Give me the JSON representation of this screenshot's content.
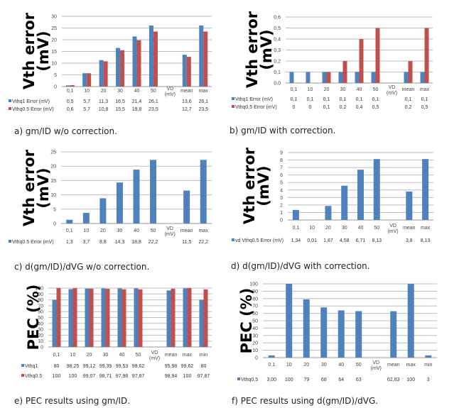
{
  "colors": {
    "blue": "#4f81bd",
    "red": "#c0504d",
    "grid": "#bdbdbd"
  },
  "chart_data": [
    {
      "id": "a",
      "type": "bar",
      "caption": "a) gm/ID w/o correction.",
      "ylabel": [
        "Vth error",
        "(mV)"
      ],
      "ylim": [
        0,
        30
      ],
      "ystep": 5,
      "tick_decimals": 0,
      "grid": true,
      "categories": [
        "0,1",
        "10",
        "20",
        "30",
        "40",
        "50",
        "VD\n(mV)",
        "mean",
        "max"
      ],
      "series": [
        {
          "name": "Vthq1 Error (mV)",
          "color": "#4f81bd",
          "values": [
            0.5,
            5.7,
            11.3,
            16.5,
            21.4,
            26.1,
            null,
            13.6,
            26.1
          ],
          "labels": [
            "0,5",
            "5,7",
            "11,3",
            "16,5",
            "21,4",
            "26,1",
            "",
            "13,6",
            "26,1"
          ]
        },
        {
          "name": "Vthq0.5 Error (mV)",
          "color": "#c0504d",
          "values": [
            0.6,
            5.7,
            10.8,
            15.5,
            19.8,
            23.5,
            null,
            12.7,
            23.5
          ],
          "labels": [
            "0,6",
            "5,7",
            "10,8",
            "15,5",
            "19,8",
            "23,5",
            "",
            "12,7",
            "23,5"
          ]
        }
      ]
    },
    {
      "id": "b",
      "type": "bar",
      "caption": "b) gm/ID with correction.",
      "ylabel": [
        "Vth error",
        "(mV)"
      ],
      "ylim": [
        0,
        0.6
      ],
      "ystep": 0.1,
      "tick_decimals": 1,
      "grid": true,
      "categories": [
        "0,1",
        "10",
        "20",
        "30",
        "40",
        "50",
        "VD\n(mV)",
        "mean",
        "max"
      ],
      "series": [
        {
          "name": "Vthq1 Error (mV)",
          "color": "#4f81bd",
          "values": [
            0.1,
            0.1,
            0.1,
            0.1,
            0.1,
            0.1,
            null,
            0.1,
            0.1
          ],
          "labels": [
            "0,1",
            "0,1",
            "0,1",
            "0,1",
            "0,1",
            "0,1",
            "",
            "0,1",
            "0,1"
          ]
        },
        {
          "name": "Vthq0.5 Error (mV)",
          "color": "#c0504d",
          "values": [
            0,
            0,
            0.1,
            0.2,
            0.4,
            0.5,
            null,
            0.2,
            0.5
          ],
          "labels": [
            "0",
            "0",
            "0,1",
            "0,2",
            "0,4",
            "0,5",
            "",
            "0,2",
            "0,5"
          ]
        }
      ]
    },
    {
      "id": "c",
      "type": "bar",
      "caption": "c) d(gm/ID)/dVG w/o correction.",
      "ylabel": [
        "Vth error",
        "(mV)"
      ],
      "ylim": [
        0,
        25
      ],
      "ystep": 5,
      "tick_decimals": 0,
      "grid": true,
      "categories": [
        "0,1",
        "10",
        "20",
        "30",
        "40",
        "50",
        "VD\n(mV)",
        "mean",
        "max"
      ],
      "series": [
        {
          "name": "Vthq0.5 Error (mV)",
          "color": "#4f81bd",
          "values": [
            1.3,
            3.7,
            8.8,
            14.3,
            18.8,
            22.2,
            null,
            11.5,
            22.2
          ],
          "labels": [
            "1,3",
            "3,7",
            "8,8",
            "14,3",
            "18,8",
            "22,2",
            "",
            "11,5",
            "22,2"
          ]
        }
      ]
    },
    {
      "id": "d",
      "type": "bar",
      "caption": "d) d(gm/ID)/dVG with correction.",
      "ylabel": [
        "Vth error",
        "(mV)"
      ],
      "ylim": [
        0,
        9
      ],
      "ystep": 1,
      "tick_decimals": 0,
      "grid": true,
      "categories": [
        "0,1",
        "10",
        "20",
        "30",
        "40",
        "50",
        "VD\n(mV)",
        "mean",
        "max"
      ],
      "series": [
        {
          "name": "vd Vthq0.5 Error (mV)",
          "color": "#4f81bd",
          "values": [
            1.34,
            0.01,
            1.87,
            4.58,
            6.71,
            8.13,
            null,
            3.8,
            8.13
          ],
          "labels": [
            "1,34",
            "0,01",
            "1,87",
            "4,58",
            "6,71",
            "8,13",
            "",
            "3,8",
            "8,13"
          ]
        }
      ]
    },
    {
      "id": "e",
      "type": "bar",
      "caption": "e) PEC results using gm/ID.",
      "ylabel": [
        "PEC (%)"
      ],
      "ylim": [
        0,
        100
      ],
      "ystep": 10,
      "tick_decimals": 0,
      "grid": true,
      "categories": [
        "0,1",
        "10",
        "20",
        "30",
        "40",
        "50",
        "VD\n(mV)",
        "mean",
        "max",
        "min"
      ],
      "series": [
        {
          "name": "Vthq1",
          "color": "#4f81bd",
          "values": [
            80,
            98.25,
            99.12,
            99.39,
            99.53,
            99.62,
            null,
            95.98,
            99.62,
            80
          ],
          "labels": [
            "80",
            "98,25",
            "99,12",
            "99,39",
            "99,53",
            "99,62",
            "",
            "95,98",
            "99,62",
            "80"
          ]
        },
        {
          "name": "Vthq0.5",
          "color": "#c0504d",
          "values": [
            100,
            100,
            99.07,
            98.71,
            97.98,
            97.87,
            null,
            98.94,
            100,
            97.87
          ],
          "labels": [
            "100",
            "100",
            "99,07",
            "98,71",
            "97,98",
            "97,87",
            "",
            "98,94",
            "100",
            "97,87"
          ]
        }
      ]
    },
    {
      "id": "f",
      "type": "bar",
      "caption": "f) PEC results using d(gm/ID)/dVG.",
      "ylabel": [
        "PEC (%)"
      ],
      "ylim": [
        0,
        100
      ],
      "ystep": 10,
      "tick_decimals": 0,
      "grid": true,
      "categories": [
        "0,1",
        "10",
        "20",
        "30",
        "40",
        "50",
        "VD\n(mV)",
        "mean",
        "max",
        "min"
      ],
      "series": [
        {
          "name": "Vthq0.5",
          "color": "#4f81bd",
          "values": [
            3,
            100,
            79,
            68,
            64,
            63,
            null,
            62.83,
            100,
            3
          ],
          "labels": [
            "3,00",
            "100",
            "79",
            "68",
            "64",
            "63",
            "",
            "62,83",
            "100",
            "3"
          ]
        }
      ]
    }
  ]
}
